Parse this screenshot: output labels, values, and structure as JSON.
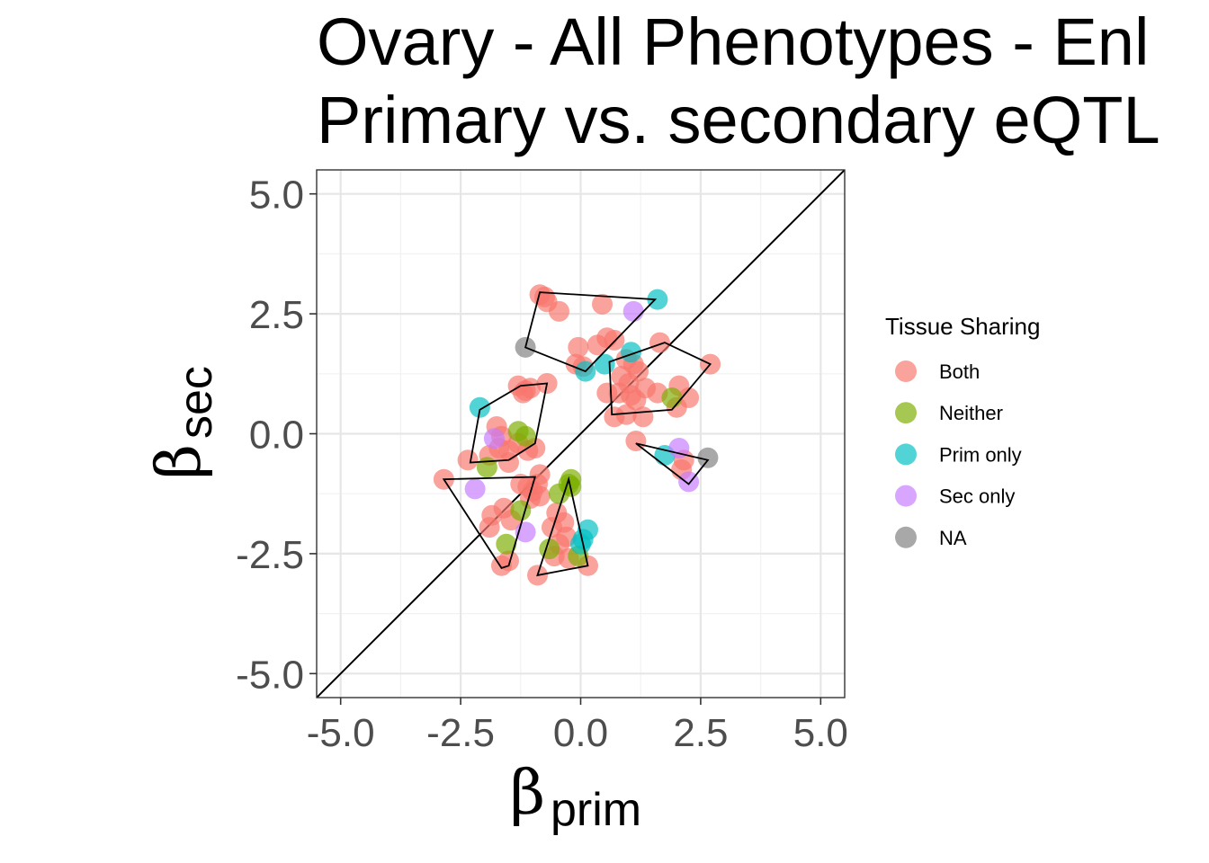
{
  "title": {
    "line1": "Ovary - All Phenotypes - Enl",
    "line2": "Primary vs. secondary eQTL"
  },
  "chart_data": {
    "type": "scatter",
    "xlabel": {
      "symbol": "β",
      "subscript": "prim"
    },
    "ylabel": {
      "symbol": "β",
      "subscript": "sec"
    },
    "xlim": [
      -5.5,
      5.5
    ],
    "ylim": [
      -5.5,
      5.5
    ],
    "xticks": [
      "-5.0",
      "-2.5",
      "0.0",
      "2.5",
      "5.0"
    ],
    "yticks": [
      "-5.0",
      "-2.5",
      "0.0",
      "2.5",
      "5.0"
    ],
    "tick_values": [
      -5,
      -2.5,
      0,
      2.5,
      5
    ],
    "minor_grid": [
      -3.75,
      -1.25,
      1.25,
      3.75
    ],
    "grid": true,
    "reference_line": {
      "type": "identity",
      "label": "y = x"
    },
    "legend": {
      "title": "Tissue Sharing",
      "placement": "right",
      "entries": [
        {
          "name": "Both",
          "color": "#F8766D"
        },
        {
          "name": "Neither",
          "color": "#7CAE00"
        },
        {
          "name": "Prim only",
          "color": "#00BFC4"
        },
        {
          "name": "Sec only",
          "color": "#C77CFF"
        },
        {
          "name": "NA",
          "color": "#7F7F7F"
        }
      ]
    },
    "series": [
      {
        "name": "Both",
        "points": [
          [
            -0.85,
            2.9
          ],
          [
            -0.75,
            2.85
          ],
          [
            -0.7,
            2.75
          ],
          [
            -0.45,
            2.55
          ],
          [
            0.45,
            2.7
          ],
          [
            -0.05,
            1.8
          ],
          [
            0.55,
            2.0
          ],
          [
            0.35,
            1.85
          ],
          [
            0.7,
            1.95
          ],
          [
            0.95,
            1.55
          ],
          [
            1.65,
            1.9
          ],
          [
            2.7,
            1.45
          ],
          [
            0.05,
            1.4
          ],
          [
            -0.1,
            1.45
          ],
          [
            1.2,
            1.3
          ],
          [
            1.1,
            1.45
          ],
          [
            0.85,
            1.2
          ],
          [
            1.0,
            1.05
          ],
          [
            1.35,
            0.95
          ],
          [
            1.6,
            0.85
          ],
          [
            2.05,
            1.0
          ],
          [
            2.25,
            0.75
          ],
          [
            2.0,
            0.55
          ],
          [
            0.8,
            0.85
          ],
          [
            1.05,
            0.8
          ],
          [
            1.15,
            0.7
          ],
          [
            0.7,
            0.35
          ],
          [
            1.3,
            0.35
          ],
          [
            0.95,
            0.4
          ],
          [
            -1.3,
            1.0
          ],
          [
            -1.2,
            0.85
          ],
          [
            -1.05,
            0.95
          ],
          [
            -1.15,
            0.9
          ],
          [
            -0.7,
            1.05
          ],
          [
            -1.75,
            0.15
          ],
          [
            -1.65,
            -0.05
          ],
          [
            -1.5,
            -0.35
          ],
          [
            -1.7,
            -0.3
          ],
          [
            -1.5,
            -0.6
          ],
          [
            -1.9,
            -0.45
          ],
          [
            -2.35,
            -0.55
          ],
          [
            -2.85,
            -0.95
          ],
          [
            -1.3,
            -0.2
          ],
          [
            -1.1,
            -0.35
          ],
          [
            -0.95,
            -0.3
          ],
          [
            -0.85,
            -0.85
          ],
          [
            -1.25,
            -1.05
          ],
          [
            -1.1,
            -1.1
          ],
          [
            -0.9,
            -1.05
          ],
          [
            -1.0,
            -1.2
          ],
          [
            -1.05,
            -1.35
          ],
          [
            -0.85,
            -1.3
          ],
          [
            -1.85,
            -1.7
          ],
          [
            -1.9,
            -1.95
          ],
          [
            -1.6,
            -1.55
          ],
          [
            -1.45,
            -1.8
          ],
          [
            -0.5,
            -1.65
          ],
          [
            -0.35,
            -1.85
          ],
          [
            -0.6,
            -1.95
          ],
          [
            -0.3,
            -2.15
          ],
          [
            -0.45,
            -2.3
          ],
          [
            -0.55,
            -2.55
          ],
          [
            -0.25,
            -2.6
          ],
          [
            -1.65,
            -2.75
          ],
          [
            -1.5,
            -2.65
          ],
          [
            -0.9,
            -2.95
          ],
          [
            0.15,
            -2.75
          ],
          [
            0.55,
            0.85
          ],
          [
            1.15,
            -0.15
          ],
          [
            2.15,
            -0.55
          ],
          [
            2.1,
            -0.75
          ]
        ]
      },
      {
        "name": "Neither",
        "points": [
          [
            -1.3,
            0.05
          ],
          [
            -1.15,
            -0.05
          ],
          [
            -1.95,
            -0.7
          ],
          [
            -1.25,
            -1.6
          ],
          [
            -1.55,
            -2.3
          ],
          [
            -0.2,
            -0.95
          ],
          [
            -0.25,
            -1.05
          ],
          [
            -0.2,
            -1.1
          ],
          [
            -0.45,
            -1.25
          ],
          [
            -0.65,
            -2.4
          ],
          [
            -0.05,
            -2.55
          ],
          [
            1.9,
            0.75
          ]
        ]
      },
      {
        "name": "Prim only",
        "points": [
          [
            -2.1,
            0.55
          ],
          [
            1.6,
            2.8
          ],
          [
            1.05,
            1.7
          ],
          [
            0.5,
            1.45
          ],
          [
            0.1,
            1.3
          ],
          [
            0.15,
            -2.0
          ],
          [
            0.05,
            -2.2
          ],
          [
            0.0,
            -2.3
          ],
          [
            1.75,
            -0.45
          ]
        ]
      },
      {
        "name": "Sec only",
        "points": [
          [
            1.1,
            2.55
          ],
          [
            -1.8,
            -0.1
          ],
          [
            -2.2,
            -1.15
          ],
          [
            -1.15,
            -2.05
          ],
          [
            2.05,
            -0.3
          ],
          [
            2.25,
            -1.0
          ]
        ]
      },
      {
        "name": "NA",
        "points": [
          [
            -1.15,
            1.8
          ],
          [
            2.65,
            -0.5
          ]
        ]
      }
    ],
    "hulls": [
      [
        [
          -0.85,
          2.95
        ],
        [
          1.55,
          2.8
        ],
        [
          0.1,
          1.3
        ],
        [
          -1.15,
          1.8
        ]
      ],
      [
        [
          -1.25,
          1.0
        ],
        [
          -0.7,
          1.05
        ],
        [
          -0.95,
          -0.2
        ],
        [
          -1.5,
          -0.55
        ],
        [
          -2.3,
          -0.6
        ],
        [
          -2.1,
          0.5
        ]
      ],
      [
        [
          -2.85,
          -0.95
        ],
        [
          -0.95,
          -0.9
        ],
        [
          -1.5,
          -2.75
        ],
        [
          -1.65,
          -2.8
        ]
      ],
      [
        [
          -0.25,
          -0.95
        ],
        [
          0.15,
          -2.75
        ],
        [
          -0.9,
          -2.95
        ]
      ],
      [
        [
          1.75,
          1.9
        ],
        [
          2.7,
          1.45
        ],
        [
          1.9,
          0.5
        ],
        [
          0.65,
          0.4
        ],
        [
          0.6,
          1.5
        ]
      ],
      [
        [
          1.15,
          -0.2
        ],
        [
          2.65,
          -0.55
        ],
        [
          2.25,
          -1.05
        ]
      ]
    ]
  }
}
